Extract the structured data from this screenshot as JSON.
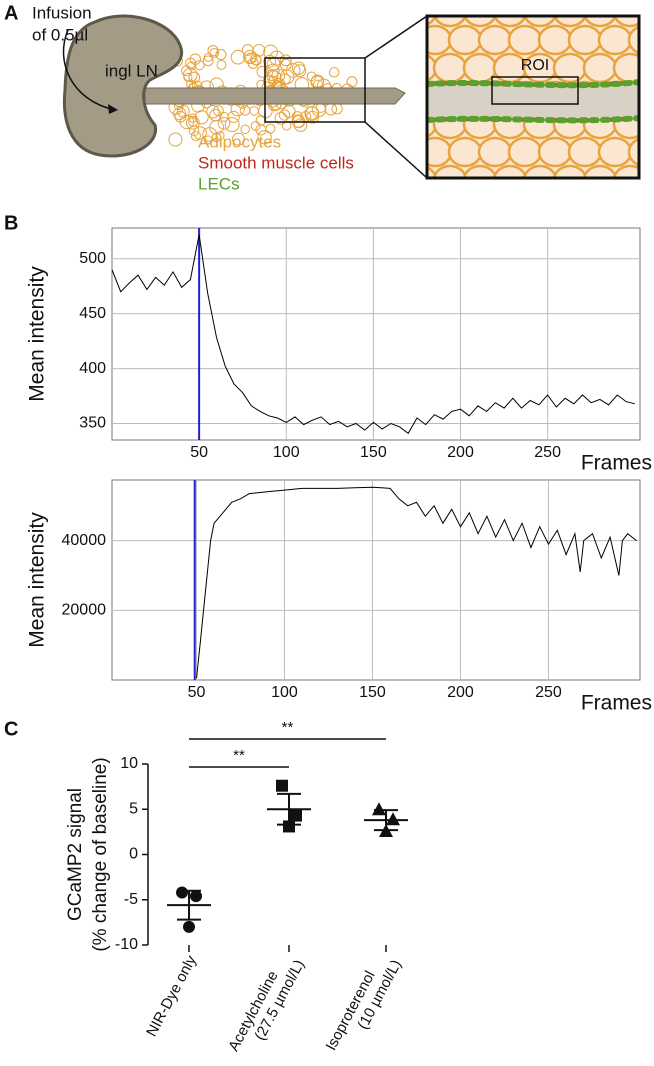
{
  "panels": [
    "A",
    "B",
    "C"
  ],
  "diagram": {
    "infusion": [
      "Infusion",
      "of 0.5µl"
    ],
    "node": "ingl LN",
    "legend": [
      {
        "label": "Adipocytes",
        "color": "#e8a33d"
      },
      {
        "label": "Smooth muscle cells",
        "color": "#c0271c"
      },
      {
        "label": "LECs",
        "color": "#5aa02c"
      }
    ],
    "roi": "ROI"
  },
  "chart_data": [
    {
      "type": "line",
      "ylabel": "Mean intensity",
      "xlabel": "Frames",
      "x": [
        0,
        5,
        10,
        15,
        20,
        25,
        30,
        35,
        40,
        45,
        50,
        55,
        60,
        65,
        70,
        75,
        80,
        85,
        90,
        95,
        100,
        105,
        110,
        115,
        120,
        125,
        130,
        135,
        140,
        145,
        150,
        155,
        160,
        165,
        170,
        175,
        180,
        185,
        190,
        195,
        200,
        205,
        210,
        215,
        220,
        225,
        230,
        235,
        240,
        245,
        250,
        255,
        260,
        265,
        270,
        275,
        280,
        285,
        290,
        295,
        300
      ],
      "series": [
        {
          "color": "#000000",
          "values": [
            490,
            470,
            478,
            485,
            472,
            483,
            476,
            488,
            474,
            481,
            522,
            468,
            428,
            402,
            386,
            378,
            366,
            361,
            357,
            355,
            351,
            356,
            349,
            353,
            356,
            349,
            352,
            347,
            350,
            344,
            351,
            345,
            350,
            347,
            341,
            355,
            349,
            358,
            354,
            361,
            363,
            357,
            366,
            361,
            369,
            364,
            373,
            364,
            371,
            367,
            376,
            365,
            373,
            368,
            376,
            369,
            372,
            367,
            376,
            370,
            368
          ]
        }
      ],
      "marker_x": 50,
      "marker_color": "#1f1fd6",
      "xlim": [
        0,
        303
      ],
      "ylim": [
        335,
        528
      ],
      "xticks": [
        50,
        100,
        150,
        200,
        250
      ],
      "yticks": [
        350,
        400,
        450,
        500
      ],
      "grid": true
    },
    {
      "type": "line",
      "ylabel": "Mean intensity",
      "xlabel": "Frames",
      "x": [
        50,
        52,
        55,
        58,
        60,
        65,
        70,
        75,
        80,
        90,
        100,
        110,
        120,
        130,
        140,
        150,
        155,
        160,
        165,
        170,
        175,
        180,
        185,
        190,
        195,
        200,
        205,
        210,
        215,
        220,
        225,
        230,
        235,
        240,
        245,
        250,
        255,
        260,
        265,
        268,
        270,
        275,
        280,
        285,
        290,
        292,
        295,
        300
      ],
      "series": [
        {
          "color": "#000000",
          "values": [
            500,
            10000,
            25000,
            40000,
            45000,
            48000,
            51000,
            52000,
            53500,
            54000,
            54500,
            55000,
            55000,
            55000,
            55200,
            55300,
            55200,
            55000,
            52000,
            50000,
            51000,
            47000,
            50000,
            45000,
            49000,
            44000,
            48000,
            42000,
            47000,
            41000,
            46000,
            40000,
            45000,
            38000,
            44000,
            39000,
            43000,
            36000,
            42000,
            31000,
            40000,
            42000,
            35000,
            41000,
            30000,
            40000,
            42000,
            40000
          ]
        }
      ],
      "marker_x": 49,
      "marker_color": "#1f1fd6",
      "xlim": [
        2,
        302
      ],
      "ylim": [
        0,
        57400
      ],
      "xticks": [
        50,
        100,
        150,
        200,
        250
      ],
      "yticks": [
        20000,
        40000
      ],
      "grid": true
    },
    {
      "type": "dot",
      "ylabel": [
        "GCaMP2 signal",
        "(% change of baseline)"
      ],
      "categories": [
        "NIR-Dye only",
        "Acetylcholine (27.5 µmol/L)",
        "Isoproterenol (10 µmol/L)"
      ],
      "markers": [
        "circle",
        "square",
        "triangle"
      ],
      "points": [
        [
          -4.2,
          -4.6,
          -8.0
        ],
        [
          7.6,
          4.3,
          3.1
        ],
        [
          5.0,
          3.9,
          2.6
        ]
      ],
      "means": [
        -5.6,
        5.0,
        3.8
      ],
      "sems": [
        1.6,
        1.7,
        1.1
      ],
      "significance": [
        {
          "from": 0,
          "to": 1,
          "label": "**"
        },
        {
          "from": 0,
          "to": 2,
          "label": "**"
        }
      ],
      "ylim": [
        -10,
        10
      ],
      "yticks": [
        -10,
        -5,
        0,
        5,
        10
      ]
    }
  ]
}
